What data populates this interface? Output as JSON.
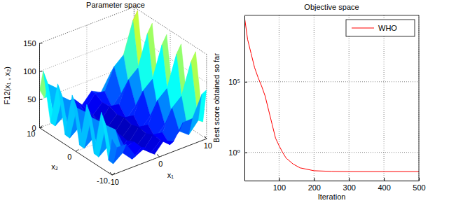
{
  "chart_data": [
    {
      "type": "surface",
      "title": "Parameter space",
      "x_label": "x₁",
      "y_label": "x₂",
      "z_label": "F12(x₁ , x₂)",
      "x": [
        -10,
        -9,
        -7,
        -5,
        -3,
        -1,
        1,
        3,
        5,
        7,
        9,
        10
      ],
      "y": [
        -10,
        -9,
        -7,
        -5,
        -3,
        -1,
        1,
        3,
        5,
        7,
        9,
        10
      ],
      "z": [
        [
          63.5,
          45.6,
          44.9,
          17.4,
          26.0,
          8.0,
          26.0,
          17.4,
          44.9,
          45.6,
          82.6,
          87.1
        ],
        [
          22.1,
          12.6,
          25.5,
          7.9,
          22.4,
          6.3,
          22.4,
          7.9,
          25.5,
          12.6,
          31.8,
          26.0
        ],
        [
          98.9,
          72.6,
          58.1,
          20.8,
          23.6,
          3.5,
          23.6,
          20.8,
          58.1,
          72.6,
          127.2,
          142.1
        ],
        [
          17.4,
          7.9,
          20.8,
          3.1,
          17.7,
          1.6,
          17.7,
          3.1,
          20.8,
          7.9,
          27.1,
          21.3
        ],
        [
          95.7,
          69.5,
          55.0,
          17.7,
          20.4,
          0.4,
          20.4,
          17.7,
          55.0,
          69.5,
          124.1,
          138.9
        ],
        [
          15.8,
          6.3,
          19.2,
          1.6,
          16.1,
          0,
          16.1,
          1.6,
          19.2,
          6.3,
          25.5,
          19.7
        ],
        [
          95.7,
          69.5,
          55.0,
          17.7,
          20.4,
          0.4,
          20.4,
          17.7,
          55.0,
          69.5,
          124.1,
          138.9
        ],
        [
          17.4,
          7.9,
          20.8,
          3.1,
          17.7,
          1.6,
          17.7,
          3.1,
          20.8,
          7.9,
          27.1,
          21.3
        ],
        [
          98.9,
          72.6,
          58.1,
          20.8,
          23.6,
          3.5,
          23.6,
          20.8,
          58.1,
          72.6,
          127.2,
          142.1
        ],
        [
          22.1,
          12.6,
          25.5,
          7.9,
          22.4,
          6.3,
          22.4,
          7.9,
          25.5,
          12.6,
          31.8,
          26.0
        ],
        [
          105.1,
          78.9,
          64.4,
          27.1,
          29.8,
          9.8,
          29.8,
          27.1,
          64.4,
          78.9,
          133.5,
          148.3
        ],
        [
          67.4,
          49.6,
          48.8,
          21.3,
          29.9,
          11.9,
          29.9,
          21.3,
          48.8,
          49.6,
          86.5,
          91.0
        ]
      ],
      "xlim": [
        -10,
        10
      ],
      "ylim": [
        -10,
        10
      ],
      "zlim": [
        0,
        150
      ],
      "xticks": [
        -10,
        0,
        10
      ],
      "yticks": [
        -10,
        0,
        10
      ],
      "zticks": [
        0,
        50,
        100,
        150
      ],
      "grid": true
    },
    {
      "type": "line",
      "title": "Objective space",
      "x_label": "Iteration",
      "y_label": "Best score obtained so far",
      "log": "y",
      "grid": true,
      "legend": "northeast",
      "x": [
        1,
        5,
        10,
        20,
        30,
        40,
        50,
        60,
        70,
        80,
        90,
        100,
        110,
        120,
        140,
        160,
        200,
        250,
        300,
        400,
        500
      ],
      "series": [
        {
          "name": "WHO",
          "color": "#ff0000",
          "values": [
            4000000000,
            800000000,
            100000000,
            10000000,
            1000000,
            200000,
            50000,
            10000,
            1000,
            100,
            10,
            3,
            1,
            0.4,
            0.15,
            0.08,
            0.05,
            0.045,
            0.043,
            0.043,
            0.043
          ]
        }
      ],
      "xlim": [
        1,
        500
      ],
      "ylim": [
        0.01,
        5000000000
      ],
      "xticks": [
        100,
        200,
        300,
        400,
        500
      ],
      "yticks": [
        {
          "value": 1,
          "label": "10⁰"
        },
        {
          "value": 100000,
          "label": "10⁵"
        }
      ]
    }
  ]
}
